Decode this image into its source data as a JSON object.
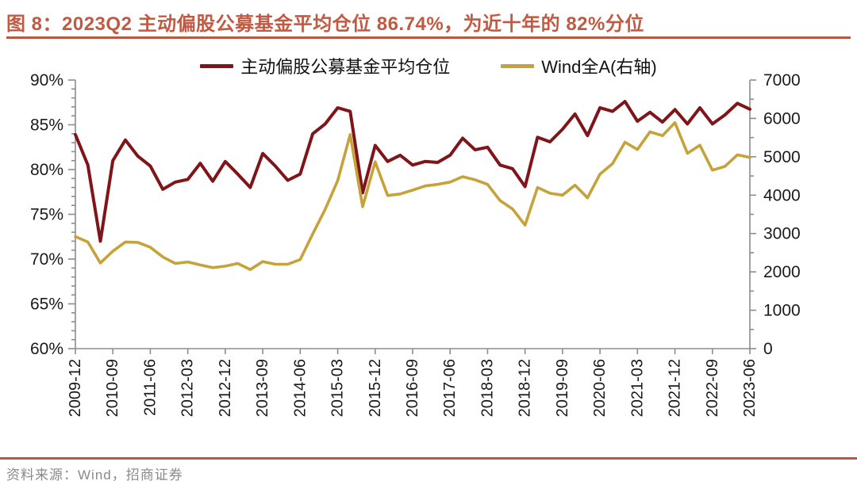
{
  "page": {
    "title": "图 8：2023Q2 主动偏股公募基金平均仓位 86.74%，为近十年的 82%分位",
    "source": "资料来源：Wind，招商证券"
  },
  "colors": {
    "accent_rule": "#b85a40",
    "title_text": "#c05a43",
    "fund_line": "#801519",
    "index_line": "#c6a23a",
    "axis": "#8c8c8c",
    "tick_label": "#1a1a1a",
    "source_text": "#8a8a8a"
  },
  "chart_data": {
    "type": "line",
    "title": "2023Q2 主动偏股公募基金平均仓位 86.74%，为近十年的 82%分位",
    "x": [
      "2009-12",
      "2010-03",
      "2010-06",
      "2010-09",
      "2010-12",
      "2011-03",
      "2011-06",
      "2011-09",
      "2011-12",
      "2012-03",
      "2012-06",
      "2012-09",
      "2012-12",
      "2013-03",
      "2013-06",
      "2013-09",
      "2013-12",
      "2014-03",
      "2014-06",
      "2014-09",
      "2014-12",
      "2015-03",
      "2015-06",
      "2015-09",
      "2015-12",
      "2016-03",
      "2016-06",
      "2016-09",
      "2016-12",
      "2017-03",
      "2017-06",
      "2017-09",
      "2017-12",
      "2018-03",
      "2018-06",
      "2018-09",
      "2018-12",
      "2019-03",
      "2019-06",
      "2019-09",
      "2019-12",
      "2020-03",
      "2020-06",
      "2020-09",
      "2020-12",
      "2021-03",
      "2021-06",
      "2021-09",
      "2021-12",
      "2022-03",
      "2022-06",
      "2022-09",
      "2022-12",
      "2023-03",
      "2023-06"
    ],
    "x_tick_labels": [
      "2009-12",
      "2010-09",
      "2011-06",
      "2012-03",
      "2012-12",
      "2013-09",
      "2014-06",
      "2015-03",
      "2015-12",
      "2016-09",
      "2017-06",
      "2018-03",
      "2018-12",
      "2019-09",
      "2020-06",
      "2021-03",
      "2021-12",
      "2022-09",
      "2023-06"
    ],
    "x_label_every": 3,
    "left_axis": {
      "min": 60,
      "max": 90,
      "major_step": 5,
      "minor_step": 1,
      "suffix": "%",
      "tick_labels": [
        "60%",
        "65%",
        "70%",
        "75%",
        "80%",
        "85%",
        "90%"
      ]
    },
    "right_axis": {
      "min": 0,
      "max": 7000,
      "major_step": 1000,
      "minor_step": 500,
      "suffix": "",
      "tick_labels": [
        "0",
        "1000",
        "2000",
        "3000",
        "4000",
        "5000",
        "6000",
        "7000"
      ]
    },
    "legend_position": "top",
    "grid": false,
    "series": [
      {
        "name": "主动偏股公募基金平均仓位",
        "axis": "left",
        "color": "#801519",
        "values": [
          83.9,
          80.5,
          72.0,
          81.0,
          83.3,
          81.5,
          80.4,
          77.8,
          78.6,
          78.9,
          80.7,
          78.7,
          80.9,
          79.5,
          78.0,
          81.8,
          80.4,
          78.8,
          79.5,
          84.0,
          85.1,
          86.9,
          86.5,
          77.4,
          82.7,
          80.9,
          81.6,
          80.5,
          80.9,
          80.8,
          81.6,
          83.5,
          82.2,
          82.5,
          80.5,
          80.1,
          78.1,
          83.6,
          83.1,
          84.5,
          86.2,
          83.8,
          86.9,
          86.5,
          87.6,
          85.4,
          86.4,
          85.3,
          86.7,
          85.1,
          86.9,
          85.1,
          86.1,
          87.4,
          86.74
        ]
      },
      {
        "name": "Wind全A(右轴)",
        "axis": "right",
        "color": "#c6a23a",
        "values": [
          2920,
          2780,
          2230,
          2540,
          2780,
          2770,
          2640,
          2390,
          2220,
          2260,
          2180,
          2110,
          2150,
          2220,
          2060,
          2270,
          2200,
          2200,
          2320,
          2990,
          3630,
          4380,
          5580,
          3700,
          4870,
          3990,
          4030,
          4130,
          4240,
          4280,
          4340,
          4480,
          4400,
          4280,
          3860,
          3640,
          3220,
          4200,
          4050,
          4000,
          4260,
          3930,
          4550,
          4820,
          5380,
          5190,
          5650,
          5550,
          5890,
          5090,
          5300,
          4650,
          4750,
          5050,
          4980
        ]
      }
    ]
  }
}
